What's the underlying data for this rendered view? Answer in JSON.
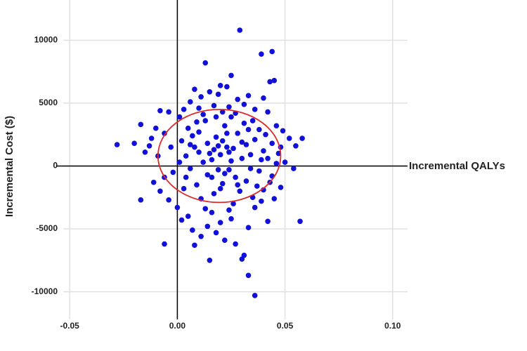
{
  "chart_data": {
    "type": "scatter",
    "xlabel": "Incremental QALYs",
    "ylabel": "Incremental Cost ($)",
    "color": "#1010d8",
    "xlim": [
      -0.053,
      0.103
    ],
    "ylim": [
      -12200,
      13200
    ],
    "xticks": [
      -0.05,
      {
        "value": 0,
        "label": "0.00"
      },
      0.05,
      {
        "value": 0.1,
        "label": "0.10"
      }
    ],
    "yticks": [
      -10000,
      -5000,
      0,
      5000,
      10000
    ],
    "grid": true,
    "ellipse": {
      "center": [
        0.0195,
        800
      ],
      "radii": [
        0.0285,
        3700
      ],
      "color": "#dd2b2b"
    },
    "x": [
      0.029,
      0.039,
      0.044,
      0.013,
      0.025,
      0.045,
      0.043,
      0.02,
      0.023,
      0.008,
      0.015,
      0.019,
      0.011,
      0.028,
      0.006,
      0.033,
      0.04,
      0.031,
      0.003,
      -0.008,
      -0.004,
      0.001,
      0.01,
      0.017,
      0.024,
      0.036,
      0.042,
      0.046,
      0.049,
      0.052,
      0.058,
      0.055,
      -0.017,
      -0.028,
      -0.02,
      -0.015,
      -0.012,
      -0.01,
      -0.006,
      -0.003,
      -0.009,
      -0.013,
      -0.002,
      -0.006,
      -0.011,
      -0.017,
      -0.008,
      -0.004,
      0.0,
      0.002,
      -0.006,
      0.005,
      0.008,
      0.007,
      0.011,
      0.014,
      0.015,
      0.018,
      0.02,
      0.022,
      0.025,
      0.027,
      0.03,
      0.031,
      0.033,
      0.033,
      0.036,
      0.036,
      0.042,
      0.057,
      0.045,
      0.048,
      0.054,
      0.05,
      0.047,
      0.044,
      0.04,
      0.038,
      0.035,
      0.032,
      0.002,
      0.004,
      0.006,
      0.008,
      0.01,
      0.012,
      0.014,
      0.016,
      0.018,
      0.02,
      0.022,
      0.024,
      0.026,
      0.028,
      0.03,
      0.032,
      0.034,
      0.036,
      0.038,
      0.04,
      0.042,
      0.044,
      0.005,
      0.009,
      0.013,
      0.017,
      0.021,
      0.025,
      0.029,
      0.033,
      0.037,
      0.041,
      0.003,
      0.007,
      0.011,
      0.015,
      0.019,
      0.023,
      0.027,
      0.031,
      0.035,
      0.039,
      0.043,
      0.001,
      0.012,
      0.018,
      0.026,
      0.021,
      0.016,
      0.024,
      0.019,
      0.022,
      0.017,
      0.02,
      0.025,
      0.023,
      0.014,
      0.028,
      0.01,
      0.03,
      0.034,
      0.006,
      0.004,
      0.046,
      0.048,
      0.039,
      0.013,
      0.009,
      0.027,
      0.021,
      0.016,
      0.024
    ],
    "values": [
      10800,
      8900,
      9100,
      8200,
      7200,
      6800,
      6700,
      6400,
      6300,
      6100,
      5900,
      5700,
      5500,
      5300,
      5100,
      5600,
      5400,
      4900,
      4500,
      4400,
      4300,
      3900,
      4600,
      4800,
      4700,
      4500,
      4300,
      3200,
      2800,
      2200,
      2200,
      1600,
      3300,
      1700,
      1800,
      1100,
      2200,
      3000,
      2600,
      1500,
      800,
      1600,
      -500,
      -900,
      -1300,
      -2700,
      -2000,
      -2700,
      -3300,
      -4300,
      -6200,
      -4000,
      -6300,
      -5100,
      -5600,
      -4800,
      -7500,
      -5300,
      -4500,
      -5900,
      -4200,
      -6200,
      -7400,
      -7100,
      -4900,
      -8700,
      -10300,
      -3300,
      -4400,
      -4400,
      -2600,
      -1700,
      -200,
      300,
      1000,
      -800,
      -1900,
      2900,
      3600,
      1700,
      2000,
      800,
      -200,
      1500,
      2700,
      300,
      1800,
      -900,
      2300,
      900,
      3200,
      -300,
      1400,
      2600,
      600,
      -1200,
      900,
      2100,
      -400,
      1200,
      600,
      1800,
      3000,
      -1500,
      3600,
      -2200,
      -1400,
      3900,
      -2000,
      2900,
      -1600,
      2500,
      -1800,
      2400,
      -2600,
      1000,
      -300,
      1500,
      -900,
      3400,
      -2500,
      500,
      -1300,
      300,
      4100,
      3900,
      -3000,
      2000,
      500,
      1100,
      1600,
      -600,
      1300,
      -1800,
      400,
      2600,
      -700,
      -1500,
      1100,
      1900,
      -200,
      1700,
      -900,
      200,
      1500,
      -2800,
      -3400,
      3500,
      4200,
      4300,
      -3700,
      -3500
    ]
  }
}
